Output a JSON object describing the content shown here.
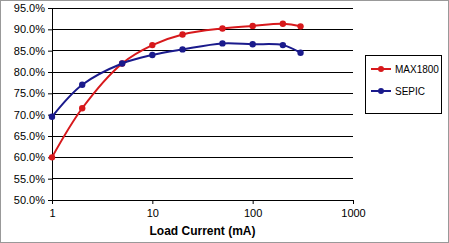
{
  "chart_data": {
    "type": "line",
    "x_label": "Load Current (mA)",
    "x": [
      1,
      2,
      5,
      10,
      20,
      50,
      100,
      200,
      300
    ],
    "series": [
      {
        "name": "MAX1800",
        "color": "#d7191c",
        "values": [
          60,
          71.5,
          82,
          86.3,
          88.8,
          90.2,
          90.8,
          91.3,
          90.7
        ]
      },
      {
        "name": "SEPIC",
        "color": "#1a1a8c",
        "values": [
          69.5,
          77,
          82,
          84,
          85.3,
          86.7,
          86.5,
          86.3,
          84.5
        ]
      }
    ],
    "xlim": [
      1,
      1000
    ],
    "xticks": [
      1,
      10,
      100,
      1000
    ],
    "ylim": [
      50,
      95
    ],
    "yticks": [
      {
        "value": 50,
        "label": "50.0%"
      },
      {
        "value": 55,
        "label": "55.0%"
      },
      {
        "value": 60,
        "label": "60.0%"
      },
      {
        "value": 65,
        "label": "65.0%"
      },
      {
        "value": 70,
        "label": "70.0%"
      },
      {
        "value": 75,
        "label": "75.0%"
      },
      {
        "value": 80,
        "label": "80.0%"
      },
      {
        "value": 85,
        "label": "85.0%"
      },
      {
        "value": 90,
        "label": "90.0%"
      },
      {
        "value": 95,
        "label": "95.0%"
      }
    ],
    "log": "x",
    "grid": true,
    "legend": "right",
    "marker": "circle",
    "line_style": "smooth"
  }
}
